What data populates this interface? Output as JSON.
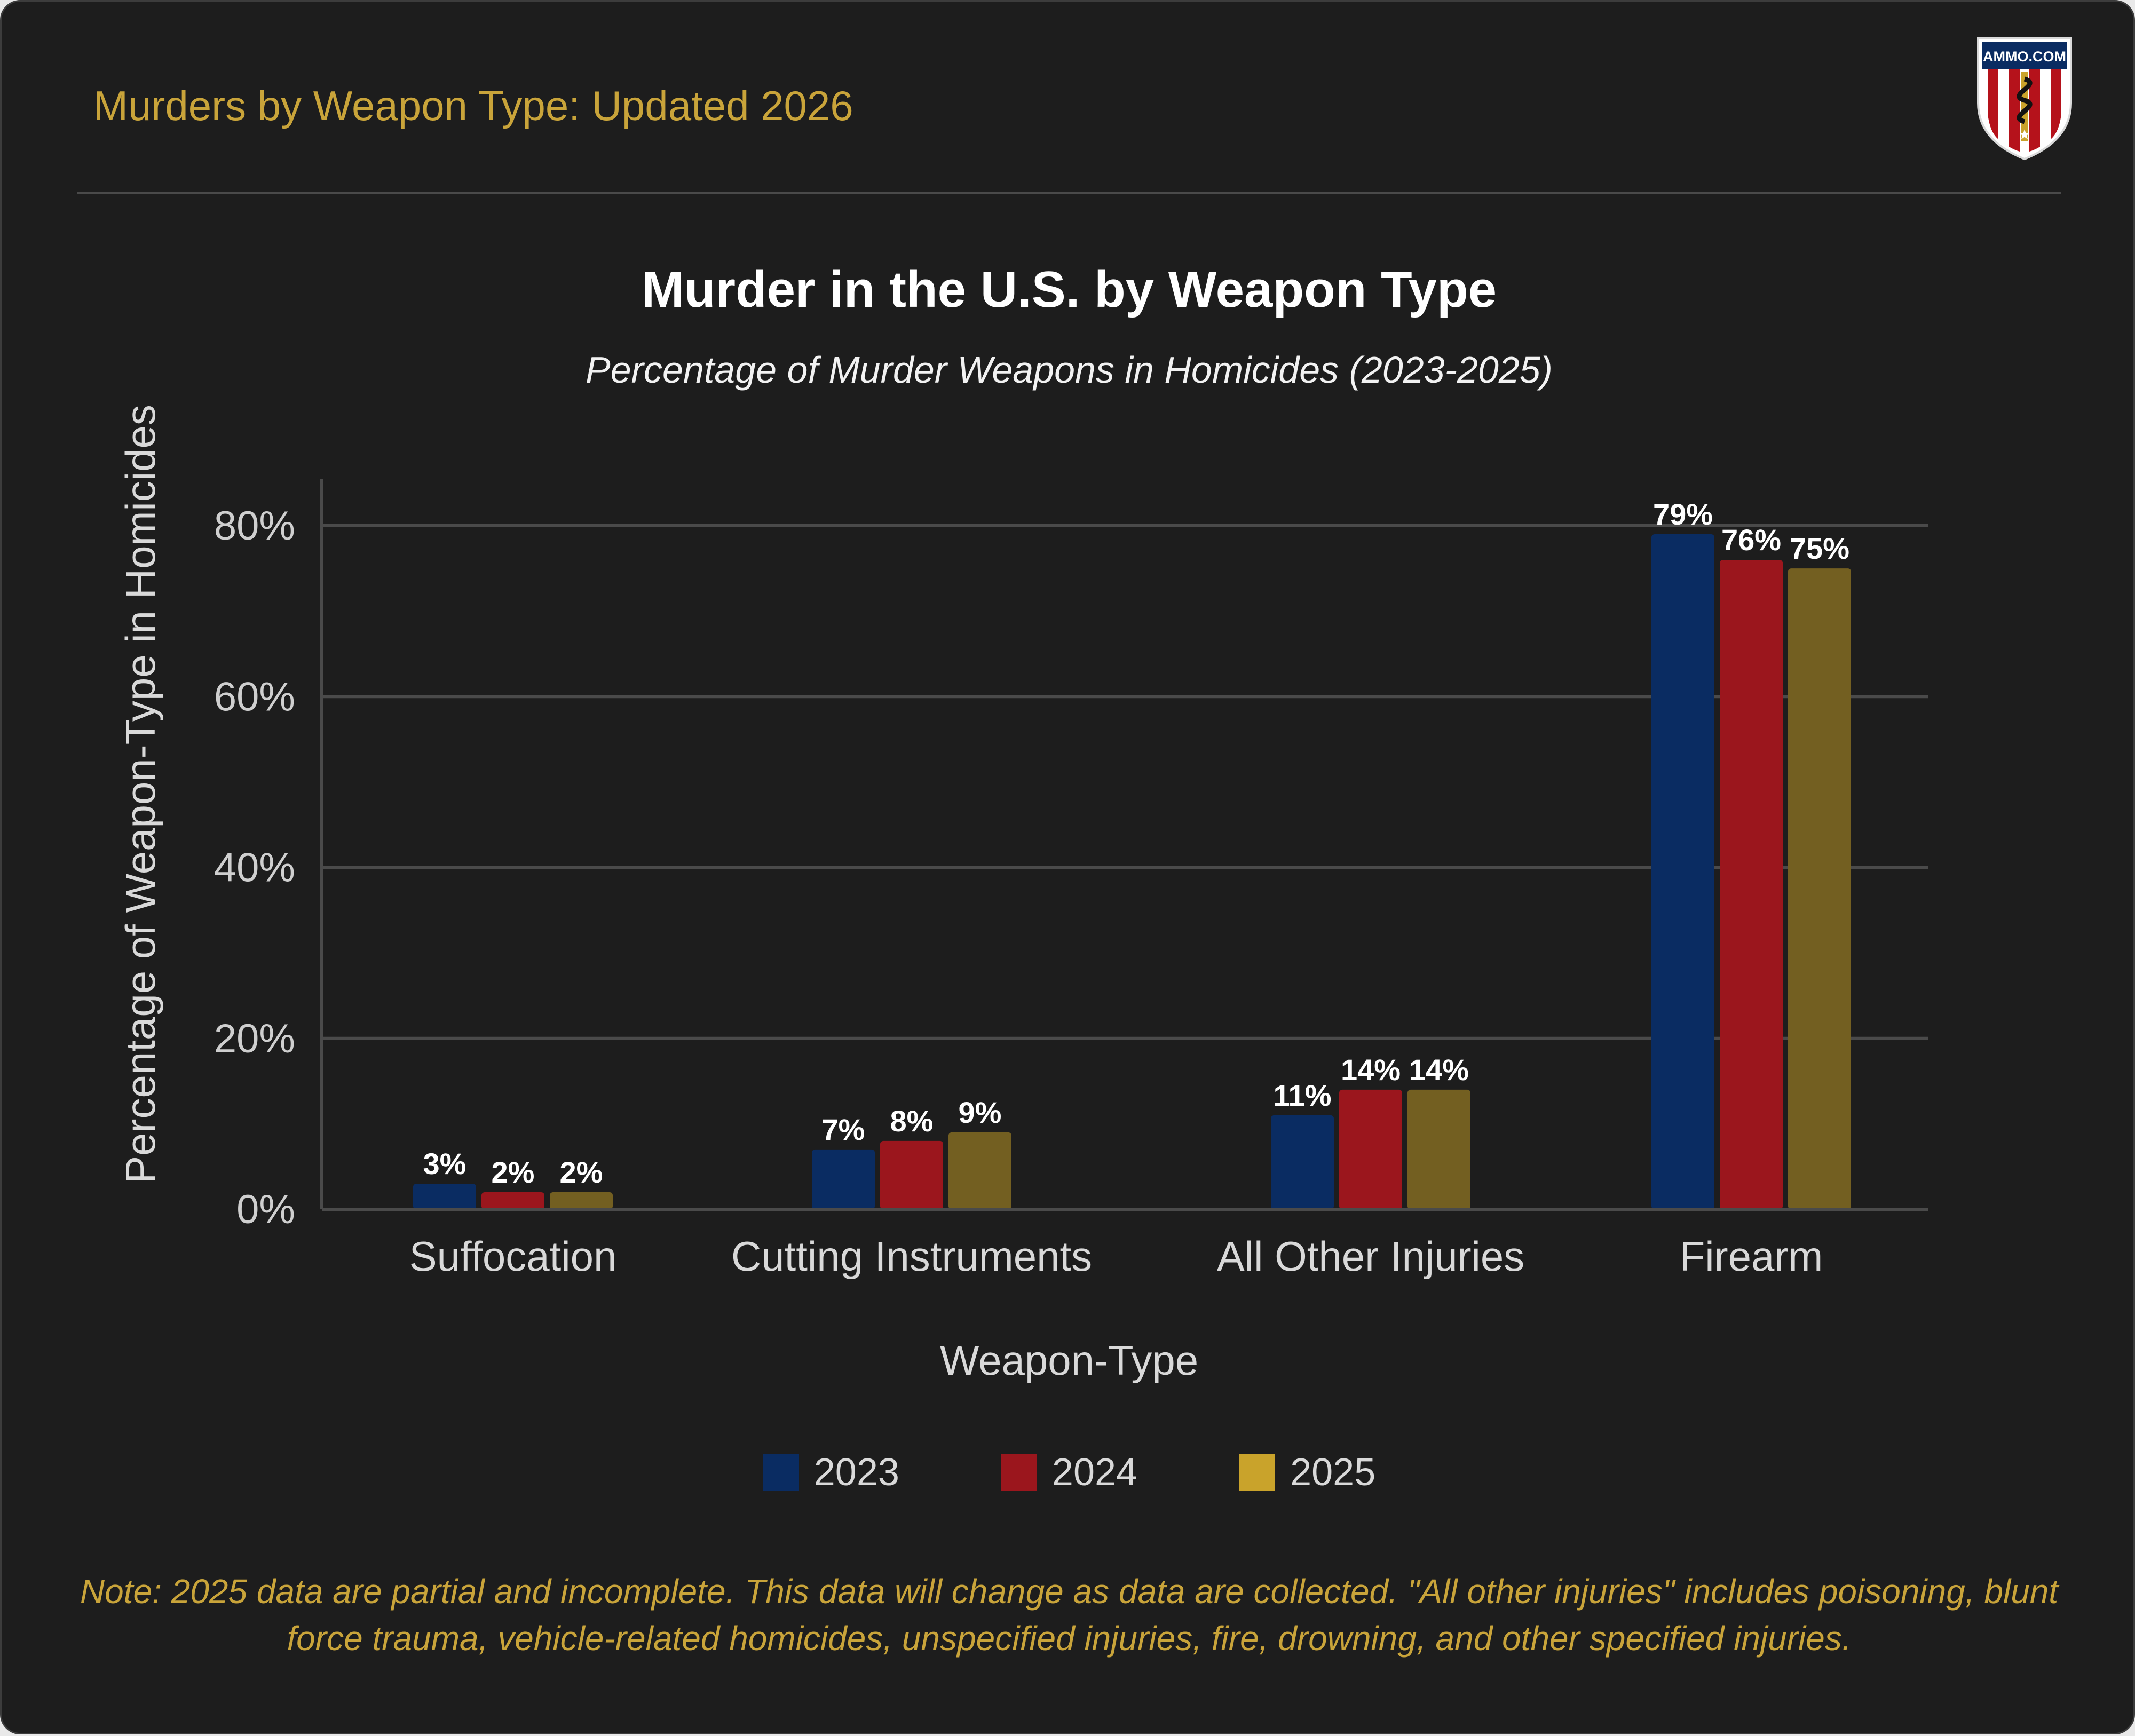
{
  "header": {
    "title": "Murders by Weapon Type: Updated 2026",
    "logo_text": "AMMO.COM",
    "logo_icon": "shield-snake-icon"
  },
  "note": "Note: 2025 data are partial and incomplete. This data will change as data are collected. \"All other injuries\" includes poisoning, blunt force trauma, vehicle-related homicides, unspecified injuries, fire, drowning, and other specified injuries.",
  "colors": {
    "background": "#1d1d1d",
    "accent": "#c9a43a",
    "series_2023": "#0a2c62",
    "series_2024": "#9b161d",
    "series_2025": "#735f21",
    "legend_2025": "#c9a32b"
  },
  "chart_data": {
    "type": "bar",
    "title": "Murder in the U.S. by Weapon Type",
    "subtitle": "Percentage of Murder Weapons in Homicides (2023-2025)",
    "xlabel": "Weapon-Type",
    "ylabel": "Percentage of Weapon-Type in Homicides",
    "categories": [
      "Suffocation",
      "Cutting Instruments",
      "All Other Injuries",
      "Firearm"
    ],
    "series": [
      {
        "name": "2023",
        "values": [
          3,
          7,
          11,
          79
        ],
        "labels": [
          "3%",
          "7%",
          "11%",
          "79%"
        ]
      },
      {
        "name": "2024",
        "values": [
          2,
          8,
          14,
          76
        ],
        "labels": [
          "2%",
          "8%",
          "14%",
          "76%"
        ]
      },
      {
        "name": "2025",
        "values": [
          2,
          9,
          14,
          75
        ],
        "labels": [
          "2%",
          "9%",
          "14%",
          "75%"
        ]
      }
    ],
    "ylim": [
      0,
      85
    ],
    "yticks": [
      0,
      20,
      40,
      60,
      80
    ],
    "ytick_labels": [
      "0%",
      "20%",
      "40%",
      "60%",
      "80%"
    ],
    "grid": true,
    "legend": "bottom"
  }
}
